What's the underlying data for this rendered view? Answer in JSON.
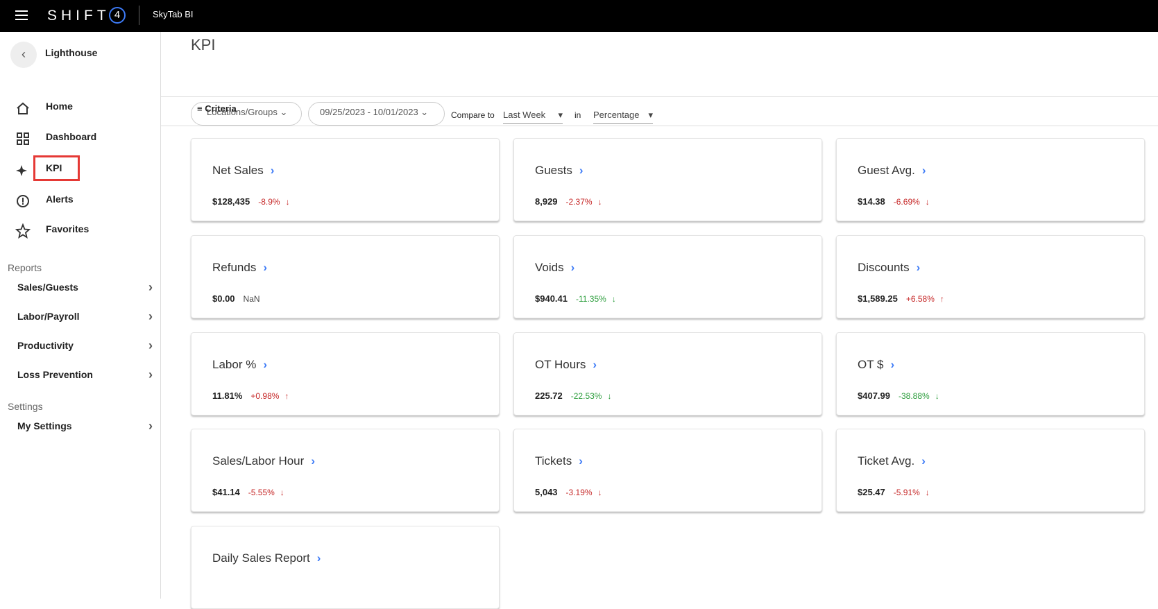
{
  "header": {
    "logo_text": "SHIFT",
    "logo_mark": "4",
    "product": "SkyTab BI"
  },
  "sidebar": {
    "back_label": "Lighthouse",
    "nav": [
      "Home",
      "Dashboard",
      "KPI",
      "Alerts",
      "Favorites"
    ],
    "sections": [
      {
        "title": "Reports",
        "items": [
          "Sales/Guests",
          "Labor/Payroll",
          "Productivity",
          "Loss Prevention"
        ]
      },
      {
        "title": "Settings",
        "items": [
          "My Settings"
        ]
      }
    ]
  },
  "page": {
    "title": "KPI",
    "filters": {
      "locations": "Locations/Groups",
      "date_range": "09/25/2023 - 10/01/2023",
      "compare_label": "Compare to",
      "compare_value": "Last Week",
      "in_label": "in",
      "in_value": "Percentage"
    },
    "criteria": "Criteria"
  },
  "cards": [
    {
      "title": "Net Sales",
      "value": "$128,435",
      "change": "-8.9%",
      "arrow": "↓",
      "color": "#c62828"
    },
    {
      "title": "Guests",
      "value": "8,929",
      "change": "-2.37%",
      "arrow": "↓",
      "color": "#c62828"
    },
    {
      "title": "Guest Avg.",
      "value": "$14.38",
      "change": "-6.69%",
      "arrow": "↓",
      "color": "#c62828"
    },
    {
      "title": "Refunds",
      "value": "$0.00",
      "change": "NaN",
      "color": "#444444"
    },
    {
      "title": "Voids",
      "value": "$940.41",
      "change": "-11.35%",
      "arrow": "↓",
      "color": "#2e9e3e"
    },
    {
      "title": "Discounts",
      "value": "$1,589.25",
      "change": "+6.58%",
      "arrow": "↑",
      "color": "#c62828"
    },
    {
      "title": "Labor %",
      "value": "11.81%",
      "change": "+0.98%",
      "arrow": "↑",
      "color": "#c62828"
    },
    {
      "title": "OT Hours",
      "value": "225.72",
      "change": "-22.53%",
      "arrow": "↓",
      "color": "#2e9e3e"
    },
    {
      "title": "OT $",
      "value": "$407.99",
      "change": "-38.88%",
      "arrow": "↓",
      "color": "#2e9e3e"
    },
    {
      "title": "Sales/Labor Hour",
      "value": "$41.14",
      "change": "-5.55%",
      "arrow": "↓",
      "color": "#c62828"
    },
    {
      "title": "Tickets",
      "value": "5,043",
      "change": "-3.19%",
      "arrow": "↓",
      "color": "#c62828"
    },
    {
      "title": "Ticket Avg.",
      "value": "$25.47",
      "change": "-5.91%",
      "arrow": "↓",
      "color": "#c62828"
    },
    {
      "title": "Daily Sales Report"
    }
  ]
}
